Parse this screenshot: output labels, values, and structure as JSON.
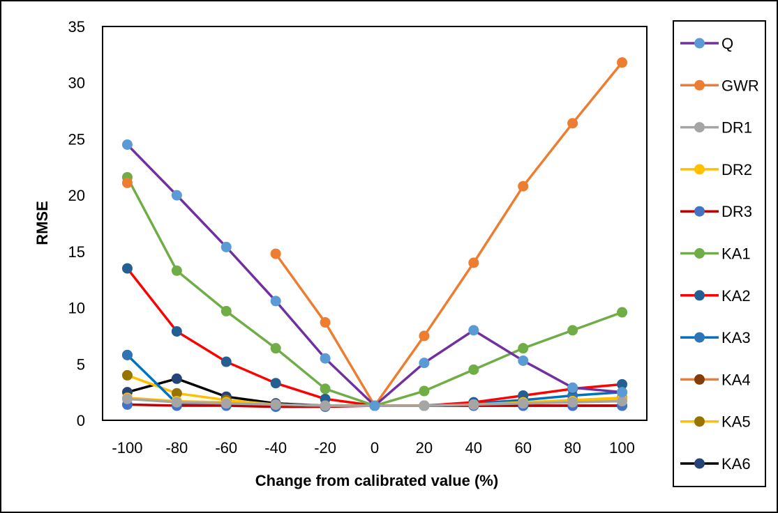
{
  "chart_data": {
    "type": "line",
    "title": "",
    "xlabel": "Change from calibrated value (%)",
    "ylabel": "RMSE",
    "ylim": [
      0,
      35
    ],
    "yticks": [
      0,
      5,
      10,
      15,
      20,
      25,
      30,
      35
    ],
    "x": [
      -100,
      -80,
      -60,
      -40,
      -20,
      0,
      20,
      40,
      60,
      80,
      100
    ],
    "grid": false,
    "legend_position": "right",
    "series": [
      {
        "name": "Q",
        "line_color": "#7030A0",
        "marker_color": "#5B9BD5",
        "values": [
          24.5,
          20.0,
          15.4,
          10.6,
          5.5,
          1.3,
          5.1,
          8.0,
          5.3,
          2.9,
          2.5
        ]
      },
      {
        "name": "GWR",
        "line_color": "#ED7D31",
        "marker_color": "#ED7D31",
        "values": [
          21.1,
          null,
          null,
          14.8,
          8.7,
          1.3,
          7.5,
          14.0,
          20.8,
          26.4,
          31.8
        ]
      },
      {
        "name": "DR1",
        "line_color": "#A5A5A5",
        "marker_color": "#A5A5A5",
        "values": [
          1.9,
          1.6,
          1.5,
          1.4,
          1.3,
          1.3,
          1.3,
          1.4,
          1.5,
          1.6,
          1.7
        ]
      },
      {
        "name": "DR2",
        "line_color": "#FFC000",
        "marker_color": "#FFC000",
        "values": [
          2.0,
          1.7,
          1.6,
          1.4,
          1.3,
          1.3,
          1.3,
          1.4,
          1.6,
          1.7,
          1.9
        ]
      },
      {
        "name": "DR3",
        "line_color": "#C00000",
        "marker_color": "#4472C4",
        "values": [
          1.4,
          1.3,
          1.3,
          1.2,
          1.2,
          1.3,
          1.3,
          1.3,
          1.3,
          1.3,
          1.3
        ]
      },
      {
        "name": "KA1",
        "line_color": "#70AD47",
        "marker_color": "#70AD47",
        "values": [
          21.6,
          13.3,
          9.7,
          6.4,
          2.8,
          1.3,
          2.6,
          4.5,
          6.4,
          8.0,
          9.6
        ]
      },
      {
        "name": "KA2",
        "line_color": "#FF0000",
        "marker_color": "#255E91",
        "values": [
          13.5,
          7.9,
          5.2,
          3.3,
          1.9,
          1.3,
          1.3,
          1.6,
          2.2,
          2.8,
          3.2
        ]
      },
      {
        "name": "KA3",
        "line_color": "#0070C0",
        "marker_color": "#2E75B6",
        "values": [
          5.8,
          1.5,
          1.4,
          1.3,
          1.3,
          1.3,
          1.3,
          1.5,
          1.8,
          2.2,
          2.5
        ]
      },
      {
        "name": "KA4",
        "line_color": "#ED7D31",
        "marker_color": "#843C0C",
        "values": [
          5.8,
          null,
          null,
          null,
          null,
          null,
          null,
          null,
          null,
          null,
          2.5
        ]
      },
      {
        "name": "KA5",
        "line_color": "#FFC000",
        "marker_color": "#997300",
        "values": [
          4.0,
          2.4,
          1.8,
          1.4,
          1.3,
          1.3,
          1.3,
          1.4,
          1.6,
          1.8,
          2.0
        ]
      },
      {
        "name": "KA6",
        "line_color": "#000000",
        "marker_color": "#264478",
        "values": [
          2.5,
          3.7,
          2.1,
          1.5,
          1.3,
          1.3,
          1.3,
          1.3,
          1.3,
          1.3,
          1.3
        ]
      }
    ]
  }
}
